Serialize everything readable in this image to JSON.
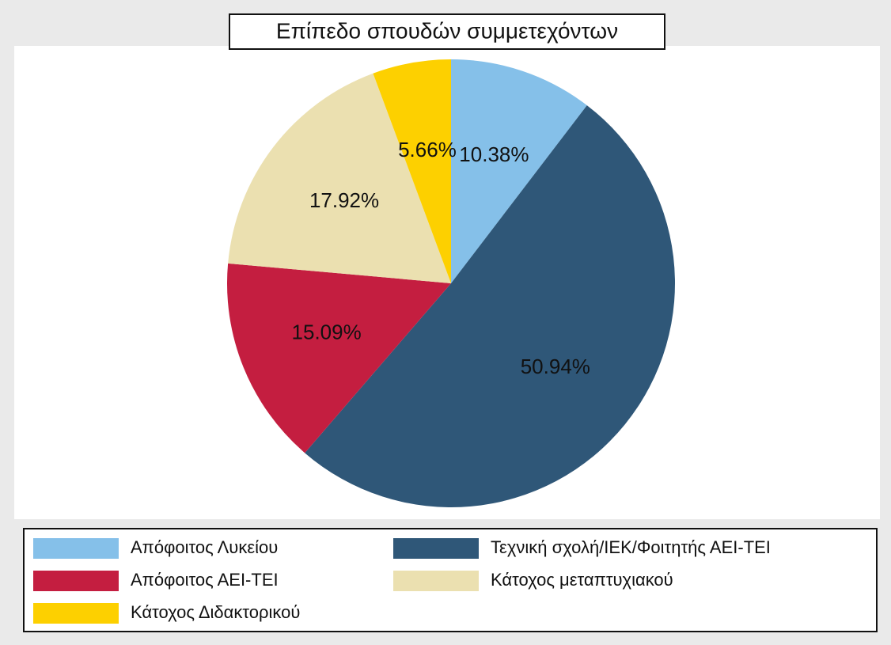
{
  "chart_data": {
    "type": "pie",
    "title": "Επίπεδο σπουδών συμμετεχόντων",
    "categories": [
      "Απόφοιτος Λυκείου",
      "Τεχνική σχολή/ΙΕΚ/Φοιτητής ΑΕΙ-ΤΕΙ",
      "Απόφοιτος ΑΕΙ-ΤΕΙ",
      "Κάτοχος μεταπτυχιακού",
      "Κάτοχος Διδακτορικού"
    ],
    "values": [
      10.38,
      50.94,
      15.09,
      17.92,
      5.66
    ],
    "value_labels": [
      "10.38%",
      "50.94%",
      "15.09%",
      "17.92%",
      "5.66%"
    ],
    "colors": [
      "#85c0e9",
      "#2f5778",
      "#c41e40",
      "#ebe0b0",
      "#fdd000"
    ],
    "legend": "bottom"
  }
}
